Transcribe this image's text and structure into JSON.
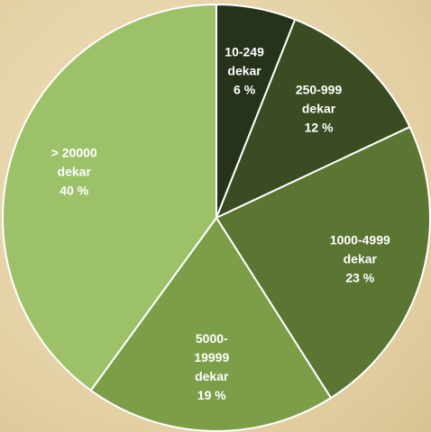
{
  "chart_data": {
    "type": "pie",
    "categories": [
      "10-249 dekar",
      "250-999 dekar",
      "1000-4999 dekar",
      "5000-19999 dekar",
      "> 20000 dekar"
    ],
    "values": [
      6,
      12,
      23,
      19,
      40
    ],
    "value_labels": [
      "6 %",
      "12 %",
      "23 %",
      "19 %",
      "40 %"
    ],
    "colors": [
      "#263219",
      "#3b4b23",
      "#5b7533",
      "#7c9e48",
      "#9dc169"
    ]
  }
}
